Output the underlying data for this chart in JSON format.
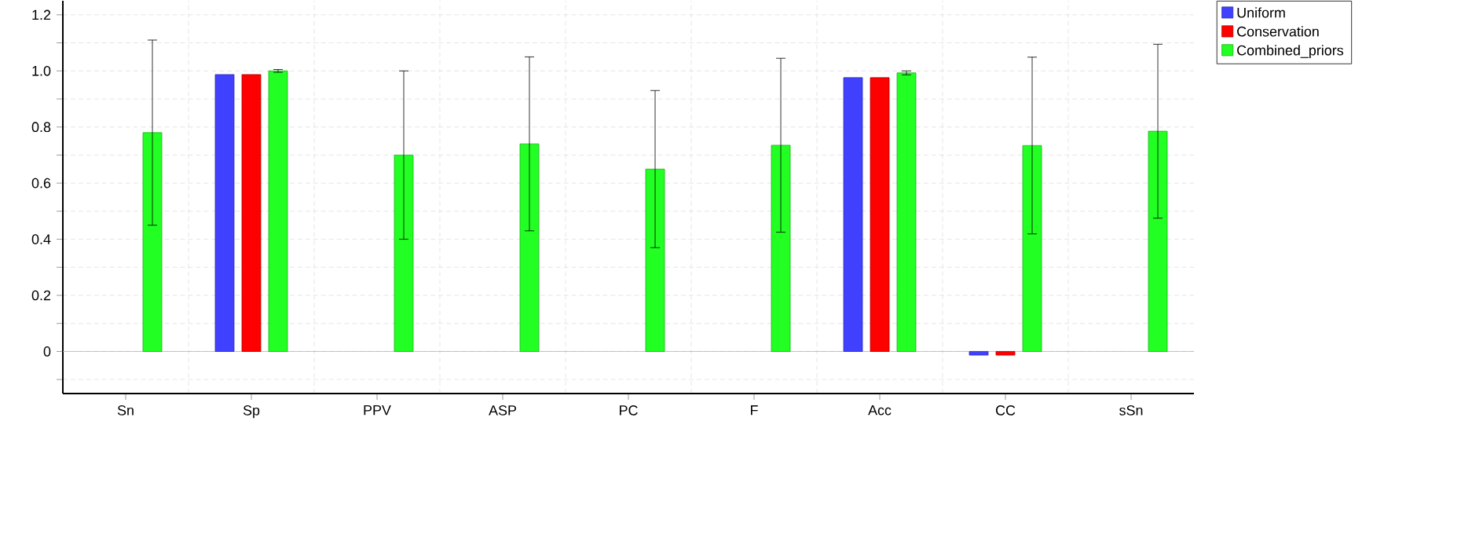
{
  "chart_data": {
    "type": "bar",
    "categories": [
      "Sn",
      "Sp",
      "PPV",
      "ASP",
      "PC",
      "F",
      "Acc",
      "CC",
      "sSn"
    ],
    "series": [
      {
        "name": "Uniform",
        "color": "#4040ff",
        "values": [
          null,
          0.987,
          null,
          null,
          null,
          null,
          0.976,
          -0.013,
          null
        ]
      },
      {
        "name": "Conservation",
        "color": "#ff0000",
        "values": [
          null,
          0.987,
          null,
          null,
          null,
          null,
          0.976,
          -0.013,
          null
        ]
      },
      {
        "name": "Combined_priors",
        "color": "#22ff22",
        "values": [
          0.78,
          1.0,
          0.7,
          0.74,
          0.65,
          0.735,
          0.993,
          0.734,
          0.785
        ],
        "errors": [
          0.33,
          0.005,
          0.3,
          0.31,
          0.28,
          0.31,
          0.007,
          0.315,
          0.31
        ]
      }
    ],
    "ylim": [
      -0.15,
      1.25
    ],
    "yticks": [
      0,
      0.2,
      0.4,
      0.6,
      0.8,
      {
        "value": 1.0,
        "label": "1.0"
      },
      1.2
    ],
    "grid": true,
    "legend": "top right"
  }
}
